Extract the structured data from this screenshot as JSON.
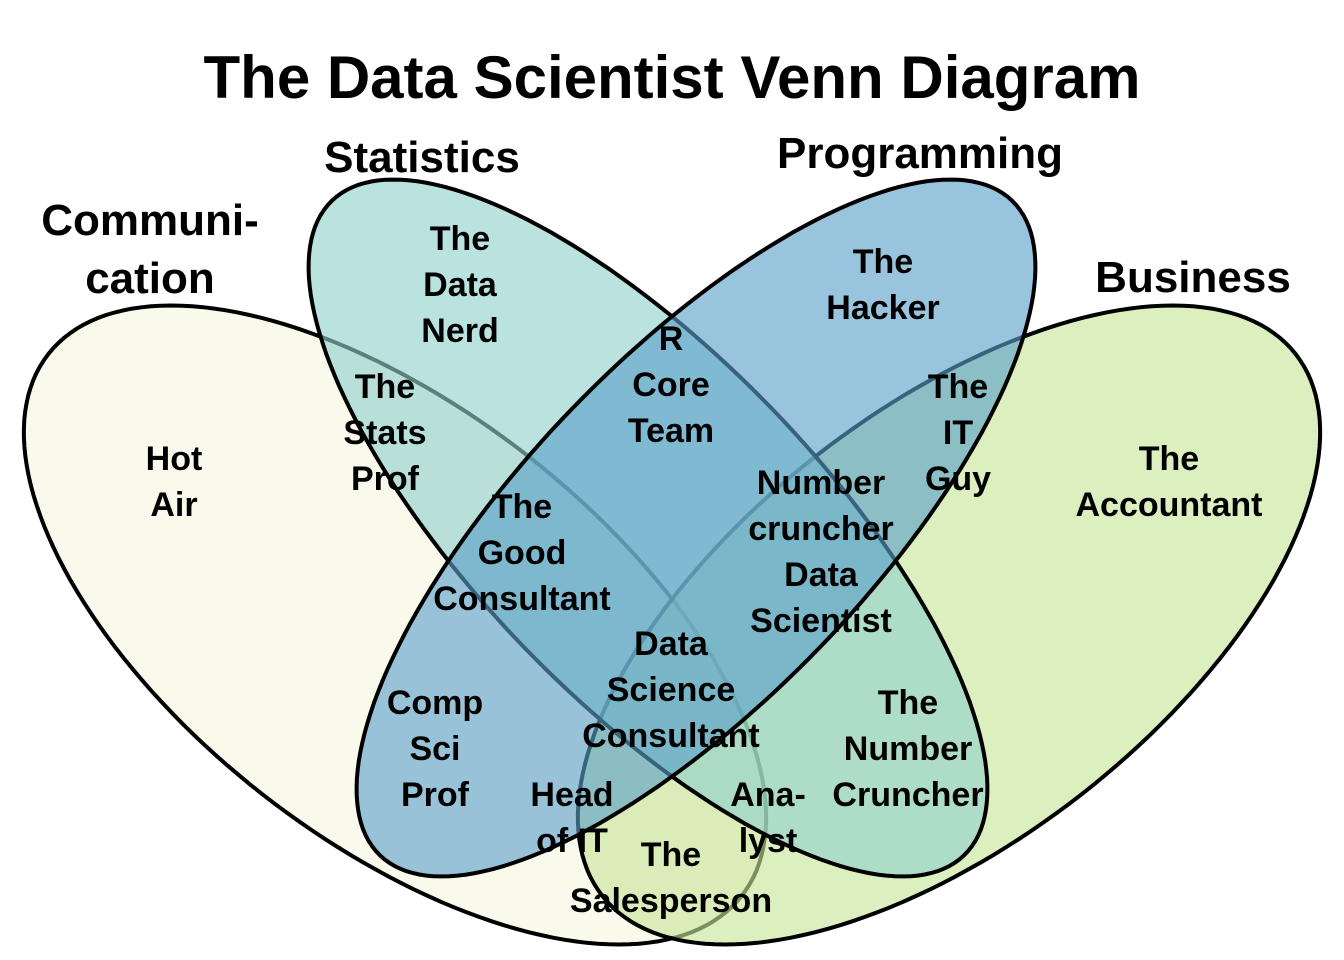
{
  "title": "The Data Scientist Venn Diagram",
  "sets": [
    {
      "id": "communication",
      "lines": [
        "Communi-",
        "cation"
      ],
      "color": "#f6f7e0"
    },
    {
      "id": "statistics",
      "lines": [
        "Statistics"
      ],
      "color": "#8fd1cb"
    },
    {
      "id": "programming",
      "lines": [
        "Programming"
      ],
      "color": "#5b9fc9"
    },
    {
      "id": "business",
      "lines": [
        "Business"
      ],
      "color": "#c6e598"
    }
  ],
  "regions": [
    {
      "id": "hot-air",
      "lines": [
        "Hot",
        "Air"
      ]
    },
    {
      "id": "data-nerd",
      "lines": [
        "The",
        "Data",
        "Nerd"
      ]
    },
    {
      "id": "hacker",
      "lines": [
        "The",
        "Hacker"
      ]
    },
    {
      "id": "accountant",
      "lines": [
        "The",
        "Accountant"
      ]
    },
    {
      "id": "stats-prof",
      "lines": [
        "The",
        "Stats",
        "Prof"
      ]
    },
    {
      "id": "r-core-team",
      "lines": [
        "R",
        "Core",
        "Team"
      ]
    },
    {
      "id": "it-guy",
      "lines": [
        "The",
        "IT",
        "Guy"
      ]
    },
    {
      "id": "good-consultant",
      "lines": [
        "The",
        "Good",
        "Consultant"
      ]
    },
    {
      "id": "number-cruncher-data-scientist",
      "lines": [
        "Number",
        "cruncher",
        "Data",
        "Scientist"
      ]
    },
    {
      "id": "data-science-consultant",
      "lines": [
        "Data",
        "Science",
        "Consultant"
      ]
    },
    {
      "id": "comp-sci-prof",
      "lines": [
        "Comp",
        "Sci",
        "Prof"
      ]
    },
    {
      "id": "number-cruncher",
      "lines": [
        "The",
        "Number",
        "Cruncher"
      ]
    },
    {
      "id": "head-of-it",
      "lines": [
        "Head",
        "of IT"
      ]
    },
    {
      "id": "analyst",
      "lines": [
        "Ana-",
        "lyst"
      ]
    },
    {
      "id": "salesperson",
      "lines": [
        "The",
        "Salesperson"
      ]
    }
  ]
}
